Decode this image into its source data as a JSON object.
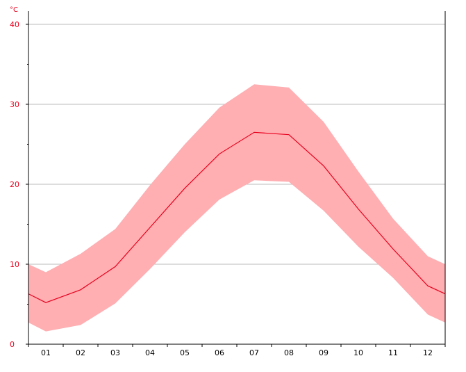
{
  "chart_data": {
    "type": "area",
    "unit_label": "°C",
    "categories": [
      "01",
      "02",
      "03",
      "04",
      "05",
      "06",
      "07",
      "08",
      "09",
      "10",
      "11",
      "12"
    ],
    "series": [
      {
        "role": "mean",
        "values": [
          5.2,
          6.8,
          9.7,
          14.6,
          19.5,
          23.8,
          26.5,
          26.2,
          22.3,
          16.9,
          11.9,
          7.3
        ]
      },
      {
        "role": "max",
        "values": [
          9.0,
          11.3,
          14.4,
          19.9,
          25.0,
          29.6,
          32.5,
          32.1,
          27.8,
          21.6,
          15.7,
          11.0
        ]
      },
      {
        "role": "min",
        "values": [
          1.6,
          2.4,
          5.1,
          9.4,
          14.0,
          18.1,
          20.5,
          20.3,
          16.7,
          12.2,
          8.3,
          3.7
        ]
      }
    ],
    "edge_left": {
      "mean": 6.3,
      "max": 10.0,
      "min": 2.7
    },
    "edge_right": {
      "mean": 6.3,
      "max": 10.0,
      "min": 2.7
    },
    "yticks": [
      0,
      10,
      20,
      30,
      40
    ],
    "ylim": [
      0,
      40
    ],
    "grid": true,
    "colors": {
      "band": "#ffaeb2",
      "line": "#e8001c",
      "axis_text": "#e8001c",
      "grid": "#bbbbbb"
    }
  }
}
